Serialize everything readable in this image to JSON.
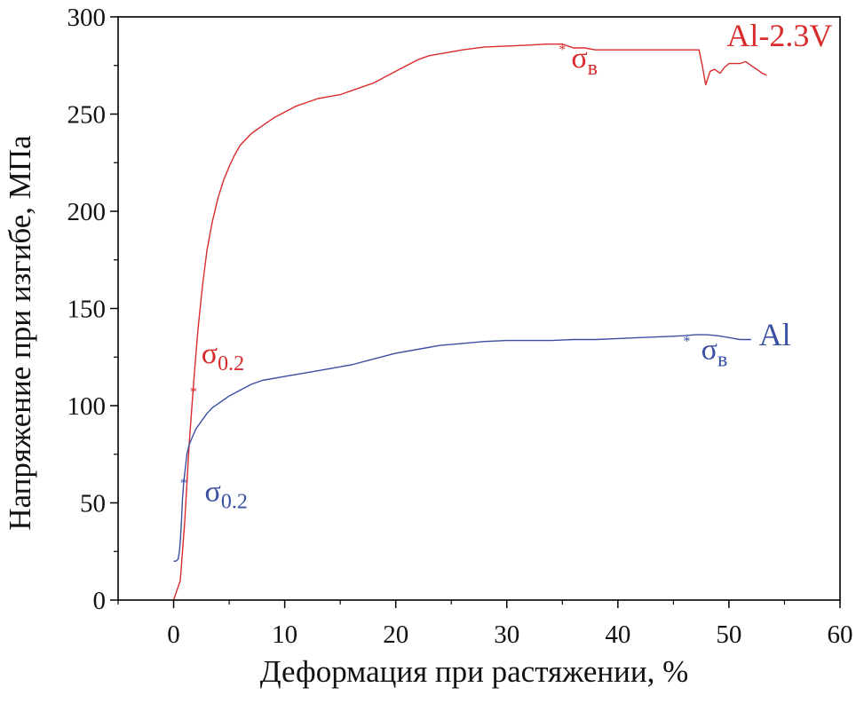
{
  "chart_data": {
    "type": "line",
    "title": "",
    "xlabel": "Деформация при растяжении, %",
    "ylabel": "Напряжение при изгибе, МПа",
    "xlim": [
      -5,
      60
    ],
    "ylim": [
      0,
      300
    ],
    "x_ticks": [
      0,
      10,
      20,
      30,
      40,
      50,
      60
    ],
    "y_ticks": [
      0,
      50,
      100,
      150,
      200,
      250,
      300
    ],
    "grid": false,
    "series": [
      {
        "name": "Al-2.3V",
        "color": "#d92b2b",
        "x": [
          0.0,
          0.6,
          1.0,
          1.4,
          1.8,
          2.2,
          2.6,
          3.0,
          3.5,
          4.0,
          4.5,
          5.0,
          5.5,
          6.0,
          6.5,
          7.0,
          7.5,
          8.0,
          9.0,
          10.0,
          11.0,
          12.0,
          13.0,
          14.0,
          15.0,
          16.0,
          17.0,
          18.0,
          19.0,
          20.0,
          21.0,
          22.0,
          23.0,
          24.0,
          25.0,
          26.0,
          28.0,
          30.0,
          32.0,
          33.5,
          35.0,
          36.0,
          37.0,
          38.0,
          40.0,
          42.0,
          44.0,
          46.0,
          47.3,
          47.6,
          47.9,
          48.3,
          48.7,
          49.2,
          49.6,
          50.0,
          50.5,
          51.0,
          51.5,
          52.0,
          52.5,
          53.0,
          53.4
        ],
        "y": [
          0,
          10,
          40,
          80,
          112,
          140,
          162,
          180,
          195,
          207,
          216,
          223,
          229,
          234,
          237,
          240,
          242,
          244,
          248,
          251,
          254,
          256,
          258,
          259,
          260,
          262,
          264,
          266,
          269,
          272,
          275,
          278,
          280,
          281,
          282,
          283,
          284.5,
          285,
          285.5,
          286,
          286,
          284,
          284,
          283,
          283,
          283,
          283,
          283,
          283,
          275,
          265,
          272,
          273,
          271,
          274,
          276,
          276,
          276,
          277,
          275,
          273,
          271,
          270
        ]
      },
      {
        "name": "Al",
        "color": "#3b4fa3",
        "x": [
          0.0,
          0.2,
          0.4,
          0.5,
          0.6,
          0.7,
          0.8,
          0.9,
          1.0,
          1.2,
          1.4,
          1.7,
          2.0,
          2.5,
          3.0,
          3.5,
          4.0,
          5.0,
          6.0,
          7.0,
          8.0,
          10.0,
          12.0,
          14.0,
          16.0,
          18.0,
          20.0,
          22.0,
          24.0,
          26.0,
          28.0,
          30.0,
          32.0,
          34.0,
          36.0,
          38.0,
          40.0,
          42.0,
          44.0,
          46.0,
          47.0,
          48.0,
          49.0,
          50.0,
          51.0,
          52.0
        ],
        "y": [
          20,
          20,
          21,
          24,
          30,
          40,
          52,
          60,
          65,
          75,
          80,
          84,
          88,
          92,
          96,
          99,
          101,
          105,
          108,
          111,
          113,
          115,
          117,
          119,
          121,
          124,
          127,
          129,
          131,
          132,
          133,
          133.5,
          133.5,
          133.5,
          134,
          134,
          134.5,
          135,
          135.5,
          136,
          136.5,
          136.5,
          136,
          135,
          134,
          134
        ]
      }
    ],
    "annotations": [
      {
        "id": "red-sigma-02",
        "text": "σ",
        "sub": "0.2",
        "color": "#d92b2b",
        "marker_x": 1.8,
        "marker_y": 108,
        "label_x": 2.5,
        "label_y": 122
      },
      {
        "id": "red-sigma-b",
        "text": "σ",
        "sub": "в",
        "color": "#d92b2b",
        "marker_x": 35.0,
        "marker_y": 284,
        "label_x": 35.8,
        "label_y": 274
      },
      {
        "id": "blue-sigma-02",
        "text": "σ",
        "sub": "0.2",
        "color": "#3b4fa3",
        "marker_x": 0.9,
        "marker_y": 61,
        "label_x": 2.8,
        "label_y": 51
      },
      {
        "id": "blue-sigma-b",
        "text": "σ",
        "sub": "в",
        "color": "#3b4fa3",
        "marker_x": 46.2,
        "marker_y": 134,
        "label_x": 47.5,
        "label_y": 124
      }
    ],
    "series_labels": [
      {
        "text": "Al-2.3V",
        "color": "#d92b2b",
        "x": 49.8,
        "y": 285
      },
      {
        "text": "Al",
        "color": "#3b4fa3",
        "x": 52.7,
        "y": 131
      }
    ]
  }
}
